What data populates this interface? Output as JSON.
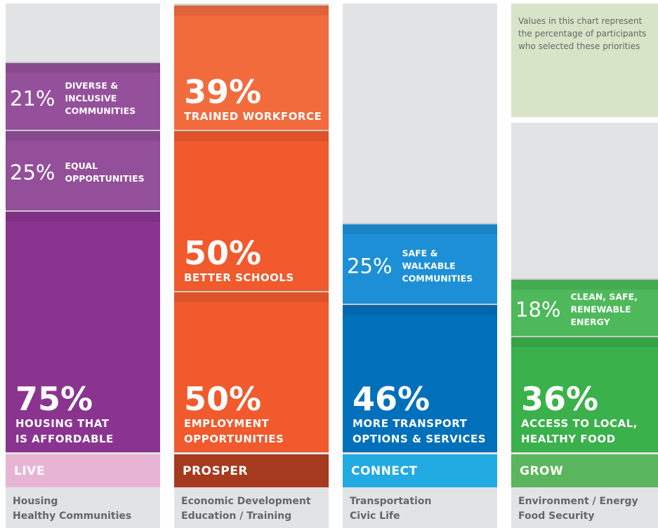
{
  "chart_data": {
    "type": "stacked-bar",
    "note": "Values in this chart represent\nthe percentage of participants\nwho selected these priorities",
    "columns": [
      {
        "name": "LIVE",
        "description": "Housing\nHealthy Communities",
        "band_color": "#e8b4d4",
        "segments": [
          {
            "value": 75,
            "value_label": "75%",
            "label": "HOUSING THAT\nIS AFFORDABLE",
            "color": "#8a3490"
          },
          {
            "value": 25,
            "value_label": "25%",
            "label": "EQUAL\nOPPORTUNITIES",
            "color": "#934f99"
          },
          {
            "value": 21,
            "value_label": "21%",
            "label": "DIVERSE &\nINCLUSIVE\nCOMMUNITIES",
            "color": "#94509a"
          }
        ]
      },
      {
        "name": "PROSPER",
        "description": "Economic Development\nEducation / Training",
        "band_color": "#a63a1e",
        "segments": [
          {
            "value": 50,
            "value_label": "50%",
            "label": "EMPLOYMENT\nOPPORTUNITIES",
            "color": "#f05a2c"
          },
          {
            "value": 50,
            "value_label": "50%",
            "label": "BETTER SCHOOLS",
            "color": "#f05a2c"
          },
          {
            "value": 39,
            "value_label": "39%",
            "label": "TRAINED WORKFORCE",
            "color": "#f26b3d"
          }
        ]
      },
      {
        "name": "CONNECT",
        "description": "Transportation\nCivic Life",
        "band_color": "#22aae2",
        "segments": [
          {
            "value": 46,
            "value_label": "46%",
            "label": "MORE TRANSPORT\nOPTIONS & SERVICES",
            "color": "#0070bb"
          },
          {
            "value": 25,
            "value_label": "25%",
            "label": "SAFE & WALKABLE\nCOMMUNITIES",
            "color": "#1c8fd6"
          }
        ]
      },
      {
        "name": "GROW",
        "description": "Environment / Energy\nFood Security",
        "band_color": "#5ab65c",
        "segments": [
          {
            "value": 36,
            "value_label": "36%",
            "label": "ACCESS TO LOCAL,\nHEALTHY FOOD",
            "color": "#3ab14a"
          },
          {
            "value": 18,
            "value_label": "18%",
            "label": "CLEAN, SAFE,\nRENEWABLE\nENERGY",
            "color": "#4db95a"
          }
        ]
      }
    ]
  }
}
